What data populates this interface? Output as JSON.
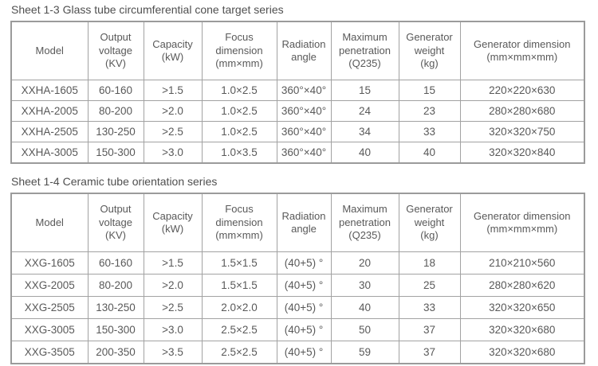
{
  "colors": {
    "text": "#595959",
    "title": "#4f4f4f",
    "border": "#a2a2a2",
    "background": "#ffffff"
  },
  "tables": [
    {
      "title": "Sheet 1-3 Glass tube circumferential cone target series",
      "headers": [
        {
          "lines": [
            "Model"
          ]
        },
        {
          "lines": [
            "Output",
            "voltage",
            "(KV)"
          ]
        },
        {
          "lines": [
            "Capacity",
            "(kW)"
          ]
        },
        {
          "lines": [
            "Focus",
            "dimension",
            "(mm×mm)"
          ]
        },
        {
          "lines": [
            "Radiation",
            "angle"
          ]
        },
        {
          "lines": [
            "Maximum",
            "penetration",
            "(Q235)"
          ]
        },
        {
          "lines": [
            "Generator",
            "weight",
            "(kg)"
          ]
        },
        {
          "lines": [
            "Generator dimension",
            "(mm×mm×mm)"
          ]
        }
      ],
      "rows": [
        [
          "XXHA-1605",
          "60-160",
          ">1.5",
          "1.0×2.5",
          "360°×40°",
          "15",
          "15",
          "220×220×630"
        ],
        [
          "XXHA-2005",
          "80-200",
          ">2.0",
          "1.0×2.5",
          "360°×40°",
          "24",
          "23",
          "280×280×680"
        ],
        [
          "XXHA-2505",
          "130-250",
          ">2.5",
          "1.0×2.5",
          "360°×40°",
          "34",
          "33",
          "320×320×750"
        ],
        [
          "XXHA-3005",
          "150-300",
          ">3.0",
          "1.0×3.5",
          "360°×40°",
          "40",
          "40",
          "320×320×840"
        ]
      ]
    },
    {
      "title": "Sheet 1-4 Ceramic tube orientation series",
      "headers": [
        {
          "lines": [
            "Model"
          ]
        },
        {
          "lines": [
            "Output",
            "voltage",
            "(KV)"
          ]
        },
        {
          "lines": [
            "Capacity",
            "(kW)"
          ]
        },
        {
          "lines": [
            "Focus",
            "dimension",
            "(mm×mm)"
          ]
        },
        {
          "lines": [
            "Radiation",
            "angle"
          ]
        },
        {
          "lines": [
            "Maximum",
            "penetration",
            "(Q235)"
          ]
        },
        {
          "lines": [
            "Generator",
            "weight",
            "(kg)"
          ]
        },
        {
          "lines": [
            "Generator dimension",
            "(mm×mm×mm)"
          ]
        }
      ],
      "rows": [
        [
          "XXG-1605",
          "60-160",
          ">1.5",
          "1.5×1.5",
          "(40+5) °",
          "20",
          "18",
          "210×210×560"
        ],
        [
          "XXG-2005",
          "80-200",
          ">2.0",
          "1.5×1.5",
          "(40+5) °",
          "30",
          "25",
          "280×280×620"
        ],
        [
          "XXG-2505",
          "130-250",
          ">2.5",
          "2.0×2.0",
          "(40+5) °",
          "40",
          "33",
          "320×320×650"
        ],
        [
          "XXG-3005",
          "150-300",
          ">3.0",
          "2.5×2.5",
          "(40+5) °",
          "50",
          "37",
          "320×320×680"
        ],
        [
          "XXG-3505",
          "200-350",
          ">3.5",
          "2.5×2.5",
          "(40+5) °",
          "59",
          "37",
          "320×320×680"
        ]
      ]
    }
  ]
}
